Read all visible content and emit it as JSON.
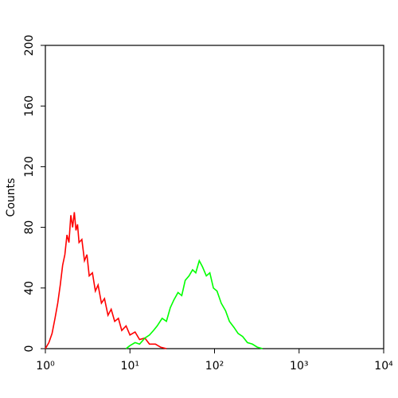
{
  "chart_data": {
    "type": "line",
    "ylabel": "Counts",
    "xscale": "log",
    "xlim": [
      1,
      10000
    ],
    "xticks": [
      {
        "value": 1,
        "label": "10⁰"
      },
      {
        "value": 10,
        "label": "10¹"
      },
      {
        "value": 100,
        "label": "10²"
      },
      {
        "value": 1000,
        "label": "10³"
      },
      {
        "value": 10000,
        "label": "10⁴"
      }
    ],
    "ylim": [
      0,
      200
    ],
    "yticks": [
      0,
      40,
      80,
      120,
      160,
      200
    ],
    "series": [
      {
        "name": "Red",
        "color": "#ff0000",
        "x": [
          1.0,
          1.1,
          1.2,
          1.3,
          1.4,
          1.5,
          1.6,
          1.7,
          1.8,
          1.9,
          2.0,
          2.1,
          2.2,
          2.3,
          2.4,
          2.5,
          2.7,
          2.9,
          3.1,
          3.3,
          3.6,
          3.9,
          4.2,
          4.6,
          5.0,
          5.5,
          6.0,
          6.6,
          7.3,
          8.0,
          9.0,
          10,
          11.5,
          13,
          15,
          17,
          20,
          23,
          27
        ],
        "values": [
          0,
          4,
          10,
          20,
          30,
          42,
          55,
          62,
          75,
          70,
          88,
          80,
          90,
          78,
          82,
          70,
          72,
          58,
          62,
          48,
          50,
          38,
          42,
          30,
          33,
          22,
          26,
          18,
          20,
          12,
          15,
          9,
          11,
          6,
          7,
          3,
          3,
          1,
          0
        ]
      },
      {
        "name": "Green",
        "color": "#00ff00",
        "x": [
          9,
          10,
          11.5,
          13,
          15,
          17,
          19,
          21,
          24,
          27,
          30,
          33,
          37,
          41,
          45,
          50,
          55,
          60,
          66,
          72,
          80,
          88,
          97,
          107,
          120,
          135,
          150,
          170,
          190,
          215,
          245,
          280,
          320,
          370
        ],
        "values": [
          0,
          2,
          4,
          3,
          7,
          9,
          12,
          15,
          20,
          18,
          27,
          32,
          37,
          35,
          45,
          48,
          52,
          50,
          58,
          54,
          48,
          50,
          40,
          38,
          30,
          25,
          18,
          14,
          10,
          8,
          4,
          3,
          1,
          0
        ]
      }
    ]
  }
}
